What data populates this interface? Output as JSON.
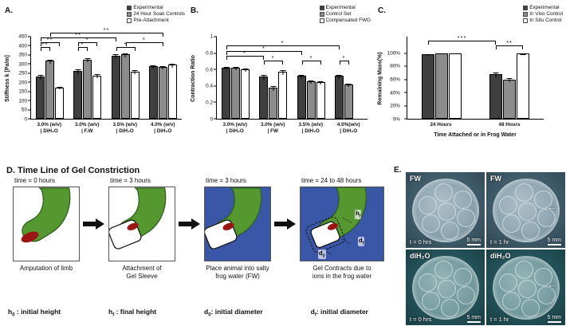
{
  "colors": {
    "bar_dark": "#3f3f3f",
    "bar_gray": "#8c8c8c",
    "bar_white": "#ffffff",
    "limb_green": "#55982f",
    "limb_outline": "#2d5c1e",
    "amputation_red": "#9c1414",
    "water_blue": "#3a57a7"
  },
  "figure": {
    "panel_a_label": "A.",
    "panel_b_label": "B.",
    "panel_c_label": "C.",
    "panel_e_label": "E."
  },
  "chart_data": [
    {
      "type": "bar",
      "title": "",
      "ylabel": "Stiffness k [Pa/m]",
      "xlabel": "",
      "ylim": [
        0,
        450
      ],
      "grid": false,
      "legend_position": "top-right",
      "yticks": [
        {
          "v": 0,
          "l": "0"
        },
        {
          "v": 50,
          "l": "50"
        },
        {
          "v": 100,
          "l": "100"
        },
        {
          "v": 150,
          "l": "150"
        },
        {
          "v": 200,
          "l": "200"
        },
        {
          "v": 250,
          "l": "250"
        },
        {
          "v": 300,
          "l": "300"
        },
        {
          "v": 350,
          "l": "350"
        },
        {
          "v": 400,
          "l": "400"
        },
        {
          "v": 450,
          "l": "450"
        }
      ],
      "categories": [
        "3.0% (w/v)\n| DiH₂O",
        "3.0% (w/v)\n| F.W",
        "3.5% (w/v)\n| DiH₂O",
        "4.0% (w/v)\n| DiH₂O"
      ],
      "series": [
        {
          "name": "Experimental",
          "color": "#3f3f3f",
          "values": [
            232,
            262,
            345,
            288
          ],
          "errors": [
            12,
            15,
            12,
            10
          ]
        },
        {
          "name": "24 Hour Soak Controls",
          "color": "#8c8c8c",
          "values": [
            318,
            325,
            352,
            285
          ],
          "errors": [
            10,
            12,
            10,
            8
          ]
        },
        {
          "name": "Pre-Attachment",
          "color": "#ffffff",
          "values": [
            172,
            238,
            260,
            295
          ],
          "errors": [
            8,
            10,
            10,
            12
          ]
        }
      ],
      "annotations": [
        {
          "from": [
            0,
            0
          ],
          "to": [
            0,
            1
          ],
          "label": "**",
          "level": 1
        },
        {
          "from": [
            0,
            0
          ],
          "to": [
            0,
            2
          ],
          "label": "**",
          "level": 2
        },
        {
          "from": [
            1,
            0
          ],
          "to": [
            1,
            1
          ],
          "label": "*",
          "level": 1
        },
        {
          "from": [
            1,
            0
          ],
          "to": [
            1,
            2
          ],
          "label": "*",
          "level": 2
        },
        {
          "from": [
            2,
            0
          ],
          "to": [
            2,
            2
          ],
          "label": "*",
          "level": 1
        },
        {
          "from": [
            2,
            1
          ],
          "to": [
            3,
            1
          ],
          "label": "*",
          "level": 2
        },
        {
          "from": [
            0,
            0
          ],
          "to": [
            2,
            0
          ],
          "label": "**",
          "level": 3
        },
        {
          "from": [
            0,
            1
          ],
          "to": [
            3,
            1
          ],
          "label": "**",
          "level": 4
        }
      ]
    },
    {
      "type": "bar",
      "title": "",
      "ylabel": "Contraction Ratio",
      "xlabel": "",
      "ylim": [
        0,
        1
      ],
      "grid": false,
      "legend_position": "top-right",
      "yticks": [
        {
          "v": 0,
          "l": "0"
        },
        {
          "v": 0.2,
          "l": "0.2"
        },
        {
          "v": 0.4,
          "l": "0.4"
        },
        {
          "v": 0.6,
          "l": "0.6"
        },
        {
          "v": 0.8,
          "l": "0.8"
        },
        {
          "v": 1,
          "l": "1"
        }
      ],
      "categories": [
        "3.0% (w/v)\n| DiH₂O",
        "3.0% (w/v)\n| FW",
        "3.5% (w/v)\n| DiH₂O",
        "4.0%(w/v)\n| DiH₂O"
      ],
      "series": [
        {
          "name": "Experimental",
          "color": "#3f3f3f",
          "values": [
            0.62,
            0.51,
            0.52,
            0.52
          ],
          "errors": [
            0.02,
            0.03,
            0.02,
            0.02
          ]
        },
        {
          "name": "Control Set",
          "color": "#8c8c8c",
          "values": [
            0.62,
            0.38,
            0.46,
            0.42
          ],
          "errors": [
            0.02,
            0.03,
            0.02,
            0.02
          ]
        },
        {
          "name": "Compensated FWG",
          "color": "#ffffff",
          "values": [
            0.6,
            0.57,
            0.45,
            null
          ],
          "errors": [
            0.02,
            0.03,
            0.02,
            0
          ]
        }
      ],
      "annotations": [
        {
          "from": [
            1,
            0
          ],
          "to": [
            1,
            2
          ],
          "label": "*",
          "level": 1
        },
        {
          "from": [
            2,
            0
          ],
          "to": [
            2,
            2
          ],
          "label": "*",
          "level": 1
        },
        {
          "from": [
            3,
            0
          ],
          "to": [
            3,
            1
          ],
          "label": "*",
          "level": 1
        },
        {
          "from": [
            0,
            0
          ],
          "to": [
            1,
            0
          ],
          "label": "*",
          "level": 2
        },
        {
          "from": [
            0,
            0
          ],
          "to": [
            2,
            0
          ],
          "label": "*",
          "level": 3
        },
        {
          "from": [
            0,
            0
          ],
          "to": [
            3,
            0
          ],
          "label": "*",
          "level": 4
        }
      ]
    },
    {
      "type": "bar",
      "title": "",
      "ylabel": "Remaining Mass(%)",
      "xlabel": "Time Attached or in Frog Water",
      "ylim": [
        0,
        1.25
      ],
      "grid": false,
      "legend_position": "top-right",
      "yticks": [
        {
          "v": 0,
          "l": "0%"
        },
        {
          "v": 0.2,
          "l": "20%"
        },
        {
          "v": 0.4,
          "l": "40%"
        },
        {
          "v": 0.6,
          "l": "60%"
        },
        {
          "v": 0.8,
          "l": "80%"
        },
        {
          "v": 1.0,
          "l": "100%"
        }
      ],
      "categories": [
        "24 Hours",
        "48 Hours"
      ],
      "series": [
        {
          "name": "Experimental",
          "color": "#3f3f3f",
          "values": [
            0.98,
            0.68
          ],
          "errors": [
            0.01,
            0.04
          ]
        },
        {
          "name": "In Vivo Control",
          "color": "#8c8c8c",
          "values": [
            1.0,
            0.6
          ],
          "errors": [
            0.01,
            0.03
          ]
        },
        {
          "name": "In Situ Control",
          "color": "#ffffff",
          "values": [
            1.0,
            0.99
          ],
          "errors": [
            0.01,
            0.01
          ]
        }
      ],
      "annotations": [
        {
          "from": [
            1,
            0
          ],
          "to": [
            1,
            2
          ],
          "label": "**",
          "level": 1
        },
        {
          "from": [
            0,
            0
          ],
          "to": [
            1,
            0
          ],
          "label": "***",
          "level": 2
        }
      ]
    }
  ],
  "panel_d": {
    "title": "D. Time Line of Gel Constriction",
    "steps": [
      {
        "time": "time = 0 hours",
        "caption": "Amputation of limb"
      },
      {
        "time": "time = 3 hours",
        "caption": "Attachment of\nGel Sleeve"
      },
      {
        "time": "time = 3 hours",
        "caption": "Place animal into salty\nfrog water  (FW)"
      },
      {
        "time": "time = 24 to 48 hours",
        "caption": "Gel Contracts due to\nions in the frog water"
      }
    ],
    "annotations": [
      {
        "base": "h",
        "sub": "f"
      },
      {
        "base": "d",
        "sub": "0"
      },
      {
        "base": "d",
        "sub": "f"
      }
    ],
    "definitions": [
      {
        "base": "h",
        "sub": "0",
        "desc": " : initial height"
      },
      {
        "base": "h",
        "sub": "f",
        "desc": " : final height"
      },
      {
        "base": "d",
        "sub": "0",
        "desc": ": initial diameter"
      },
      {
        "base": "d",
        "sub": "f",
        "desc": ": initial diameter"
      }
    ]
  },
  "panel_e": {
    "photos": [
      {
        "label": "FW",
        "time": "t = 0 hrs",
        "scale": "5 mm",
        "arrow": ""
      },
      {
        "label": "FW",
        "time": "t = 1 hr",
        "scale": "5 mm",
        "arrow": "←"
      },
      {
        "label": "diH₂O",
        "time": "t = 0 hrs",
        "scale": "5 mm",
        "arrow": ""
      },
      {
        "label": "diH₂O",
        "time": "t = 1 hr",
        "scale": "5 mm",
        "arrow": "←"
      }
    ]
  }
}
